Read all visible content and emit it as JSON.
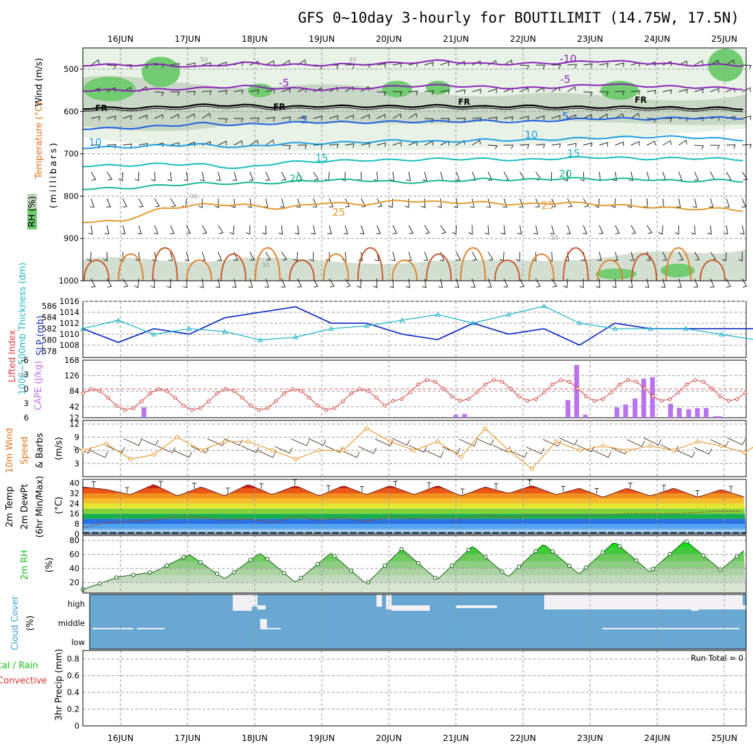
{
  "title": "GFS 0~10day 3-hourly for BOUTILIMIT (14.75W, 17.5N)",
  "dates": [
    "16JUN",
    "17JUN",
    "18JUN",
    "19JUN",
    "20JUN",
    "21JUN",
    "22JUN",
    "23JUN",
    "24JUN",
    "25JUN"
  ],
  "panels": {
    "upper": {
      "labels": [
        {
          "text": "Wind (m/s)",
          "color": "#000000"
        },
        {
          "text": "Temperature (°C)",
          "color": "#e8701a"
        },
        {
          "text": "RH (%)",
          "color": "#000000"
        },
        {
          "text": "(millibars)",
          "color": "#000000"
        }
      ],
      "yticks": [
        "500",
        "600",
        "700",
        "800",
        "900",
        "1000"
      ],
      "temperature_contour_labels": [
        "-10",
        "-5",
        "5",
        "10",
        "15",
        "20",
        "25"
      ],
      "freezing_label": "FR",
      "rh_contour_labels": [
        "50",
        "30"
      ]
    },
    "pressure": {
      "left_label": "1000~500mb Thickness (dm)",
      "right_label": "SLP (mb)",
      "left_ticks": [
        "586",
        "584",
        "582",
        "580",
        "578"
      ],
      "right_ticks": [
        "1016",
        "1014",
        "1012",
        "1010",
        "1008"
      ]
    },
    "stability": {
      "left_label": "Lifted Index",
      "right_label": "CAPE (J/kg)",
      "left_ticks": [
        "-6",
        "-3",
        "0",
        "3",
        "6"
      ],
      "right_ticks": [
        "168",
        "126",
        "84",
        "42",
        "12"
      ]
    },
    "wind10m": {
      "label_lines": [
        {
          "text": "10m Wind",
          "color": "#e8701a"
        },
        {
          "text": "Speed",
          "color": "#e8701a"
        },
        {
          "text": "& Barbs",
          "color": "#000000"
        }
      ],
      "unit": "(m/s)",
      "ticks": [
        "12",
        "9",
        "6",
        "3"
      ]
    },
    "temp2m": {
      "label_lines": [
        {
          "text": "2m Temp",
          "color": "#000000"
        },
        {
          "text": "2m DewPt",
          "color": "#000000"
        },
        {
          "text": "(6hr Min/Max)",
          "color": "#000000"
        }
      ],
      "unit": "(°C)",
      "ticks": [
        "40",
        "32",
        "24",
        "16",
        "8",
        "0"
      ]
    },
    "rh2m": {
      "label": "2m RH",
      "unit": "(%)",
      "ticks": [
        "80",
        "60",
        "40",
        "20"
      ]
    },
    "cloud": {
      "label": "Cloud Cover",
      "unit": "(%)",
      "levels": [
        "high",
        "middle",
        "low"
      ]
    },
    "precip": {
      "label": "3hr Precip (mm)",
      "legend_total": "Total / Rain",
      "legend_convective": "Convective",
      "run_total": "Run Total = 0",
      "ticks": [
        "0.8",
        "0.6",
        "0.4",
        "0.2",
        "0"
      ]
    }
  },
  "colors": {
    "slp": "#1530c8",
    "thickness": "#23b5c8",
    "lifted_index": "#d83a3a",
    "cape": "#b873ee",
    "wind_speed": "#e89a30",
    "rh2m": "#16c016",
    "cloud": "#6aa8d4",
    "fr_line": "#000000",
    "neg10": "#8a1fb8",
    "plus5": "#1c5be0",
    "plus10": "#1a9de0",
    "plus15": "#17bcbc",
    "plus20": "#16b890",
    "plus25": "#e09a30"
  },
  "chart_data": [
    {
      "type": "contour",
      "name": "upper-air cross section",
      "ylabel": "millibars",
      "ylim": [
        1000,
        450
      ],
      "x_range_days": [
        "15JUN 15Z",
        "25JUN 09Z"
      ],
      "temperature_isotherms_degC": [
        {
          "level": -10,
          "pressure_mb": [
            490,
            490,
            495,
            485,
            490,
            490,
            488,
            485,
            480,
            488,
            487,
            485,
            480,
            485,
            490,
            490,
            492
          ]
        },
        {
          "level": -5,
          "pressure_mb": [
            550,
            548,
            545,
            540,
            545,
            548,
            545,
            540,
            538,
            542,
            545,
            542,
            535,
            540,
            542,
            545,
            548
          ]
        },
        {
          "level": 0,
          "pressure_mb": [
            592,
            590,
            585,
            585,
            590,
            587,
            588,
            588,
            586,
            589,
            587,
            590,
            590,
            590,
            592,
            592,
            595
          ]
        },
        {
          "level": 5,
          "pressure_mb": [
            640,
            635,
            628,
            632,
            627,
            625,
            626,
            624,
            624,
            622,
            625,
            620,
            616,
            618,
            615,
            615,
            617
          ]
        },
        {
          "level": 10,
          "pressure_mb": [
            685,
            680,
            678,
            685,
            676,
            675,
            672,
            668,
            672,
            667,
            668,
            665,
            662,
            660,
            660,
            665,
            670
          ]
        },
        {
          "level": 15,
          "pressure_mb": [
            728,
            724,
            725,
            735,
            720,
            718,
            715,
            715,
            712,
            712,
            715,
            710,
            708,
            712,
            710,
            712,
            718
          ]
        },
        {
          "level": 20,
          "pressure_mb": [
            782,
            775,
            770,
            770,
            768,
            762,
            762,
            768,
            765,
            760,
            762,
            758,
            760,
            760,
            765,
            762,
            770
          ]
        },
        {
          "level": 25,
          "pressure_mb": [
            860,
            830,
            820,
            820,
            830,
            815,
            820,
            810,
            815,
            815,
            820,
            815,
            820,
            825,
            830,
            830,
            840
          ]
        }
      ],
      "x_days": [
        0,
        0.6,
        1.2,
        1.8,
        2.4,
        3.0,
        3.6,
        4.2,
        4.8,
        5.4,
        6.0,
        6.6,
        7.2,
        7.8,
        8.4,
        9.0,
        9.75
      ]
    },
    {
      "type": "line",
      "name": "SLP and thickness",
      "x_days": [
        0,
        0.5,
        1,
        1.5,
        2,
        2.5,
        3,
        3.5,
        4,
        4.5,
        5,
        5.5,
        6,
        6.5,
        7,
        7.5,
        8,
        8.5,
        9,
        9.5,
        9.75
      ],
      "series": [
        {
          "name": "SLP (mb)",
          "values": [
            1011,
            1008.5,
            1011,
            1010,
            1013,
            1014,
            1015,
            1012,
            1012,
            1010,
            1009,
            1012,
            1010,
            1011,
            1008,
            1012,
            1011,
            1011,
            1011,
            1011,
            1011
          ]
        },
        {
          "name": "1000~500mb Thickness (dm)",
          "values": [
            582,
            583.5,
            581,
            582,
            581.5,
            580,
            580.5,
            582,
            582.5,
            583.5,
            584.5,
            583,
            584.5,
            586,
            583,
            582,
            582,
            582,
            581,
            580,
            580
          ]
        }
      ]
    },
    {
      "type": "bar",
      "name": "CAPE and Lifted Index",
      "x_days": [
        6.67,
        6.8,
        6.93,
        7.4,
        7.53,
        7.67,
        7.8,
        7.93,
        8.2,
        8.33,
        8.47,
        8.6,
        8.73,
        8.87,
        8.93,
        9.6,
        9.73
      ],
      "series": [
        {
          "name": "CAPE (J/kg)",
          "values": [
            60,
            155,
            20,
            40,
            48,
            64,
            118,
            122,
            50,
            38,
            35,
            38,
            38,
            16,
            16,
            110,
            130
          ]
        },
        {
          "name": "Lifted Index",
          "values": [
            0,
            -0.8,
            0.3,
            0.5,
            -0.4,
            -1.3,
            -0.2,
            0.1,
            0.3,
            0.2,
            0.1,
            0.2,
            0.1,
            0.3,
            0.2,
            0.1,
            0.2
          ]
        }
      ]
    },
    {
      "type": "line",
      "name": "10m wind speed",
      "ylabel": "(m/s)",
      "ylim": [
        0,
        12
      ],
      "x_days": [
        0,
        0.33,
        0.67,
        1,
        1.33,
        1.67,
        2,
        2.33,
        2.67,
        3,
        3.33,
        3.67,
        4,
        4.33,
        4.67,
        5,
        5.33,
        5.67,
        6,
        6.33,
        6.67,
        7,
        7.33,
        7.67,
        8,
        8.33,
        8.67,
        9,
        9.33,
        9.67,
        9.75
      ],
      "values": [
        6,
        7.5,
        4,
        5,
        9,
        6,
        8,
        8,
        6,
        4,
        6,
        6,
        11,
        8,
        6,
        8,
        4.5,
        11,
        6,
        1.8,
        8,
        6,
        7,
        6,
        7,
        6,
        8,
        7,
        5.5,
        9,
        5
      ]
    },
    {
      "type": "area",
      "name": "2m temperature and dew point",
      "ylabel": "(°C)",
      "ylim": [
        0,
        42
      ],
      "x_days": [
        0,
        0.33,
        0.67,
        1,
        1.33,
        1.67,
        2,
        2.33,
        2.67,
        3,
        3.33,
        3.67,
        4,
        4.33,
        4.67,
        5,
        5.33,
        5.67,
        6,
        6.33,
        6.67,
        7,
        7.33,
        7.67,
        8,
        8.33,
        8.67,
        9,
        9.33,
        9.67,
        9.75
      ],
      "series": [
        {
          "name": "2m Temp",
          "values": [
            37,
            35,
            31,
            39,
            30,
            37,
            30,
            39,
            31,
            38,
            30,
            38,
            31,
            38,
            31,
            38,
            30,
            37,
            32,
            38,
            31,
            36,
            29,
            36,
            30,
            36,
            29,
            35,
            29,
            36,
            30
          ]
        },
        {
          "name": "2m DewPt",
          "values": [
            5,
            9,
            10,
            11,
            14,
            13,
            11,
            12,
            9,
            14,
            11,
            13,
            10,
            14,
            12,
            14,
            12,
            15,
            13,
            15,
            15,
            15,
            15,
            16,
            16,
            16,
            17,
            18,
            18,
            18,
            19
          ]
        }
      ]
    },
    {
      "type": "area",
      "name": "2m relative humidity",
      "ylabel": "(%)",
      "ylim": [
        5,
        85
      ],
      "x_days": [
        0,
        0.5,
        1,
        1.5,
        2,
        2.5,
        3,
        3.5,
        4,
        4.5,
        5,
        5.5,
        6,
        6.5,
        7,
        7.5,
        8,
        8.5,
        9,
        9.5,
        9.75
      ],
      "values": [
        10,
        28,
        35,
        60,
        25,
        62,
        20,
        62,
        18,
        68,
        24,
        72,
        28,
        75,
        32,
        78,
        35,
        80,
        38,
        80,
        80
      ]
    },
    {
      "type": "bar",
      "name": "cloud cover",
      "categories": [
        "high",
        "middle",
        "low"
      ],
      "values_percent_mean": [
        45,
        8,
        0
      ]
    },
    {
      "type": "bar",
      "name": "3hr precipitation",
      "ylabel": "3hr Precip (mm)",
      "ylim": [
        0,
        0.9
      ],
      "values": [
        0
      ]
    }
  ]
}
